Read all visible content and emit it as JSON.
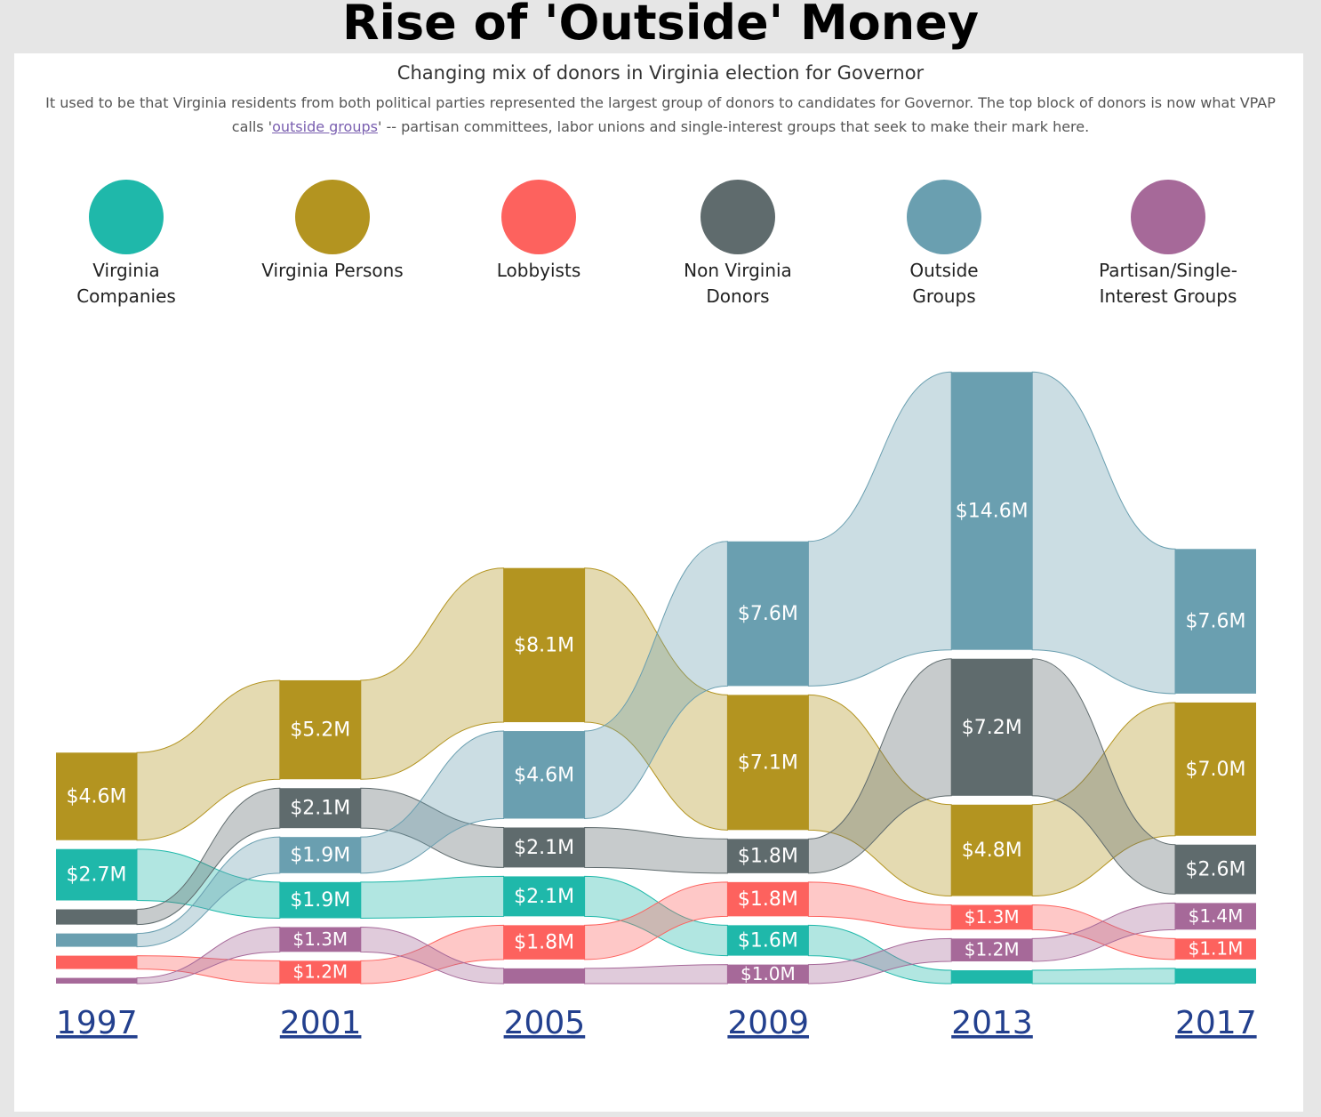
{
  "chart_data": {
    "type": "ribbon",
    "title": "Rise of 'Outside' Money",
    "subtitle": "Changing mix of donors in Virginia election for Governor",
    "description": {
      "before": "It used to be that Virginia residents from both political parties represented the largest group of donors to candidates for Governor.  The top block of donors is now what VPAP calls '",
      "link": "outside groups",
      "after": "' -- partisan committees, labor unions and single-interest groups that seek to make their mark here."
    },
    "categories": [
      "1997",
      "2001",
      "2005",
      "2009",
      "2013",
      "2017"
    ],
    "series": [
      {
        "name": "Virginia Companies",
        "color": "#1fb8aa",
        "values": [
          2.7,
          1.9,
          2.1,
          1.6,
          0.7,
          0.8
        ],
        "value_labels": [
          "$2.7M",
          "$1.9M",
          "$2.1M",
          "$1.6M",
          null,
          null
        ]
      },
      {
        "name": "Virginia Persons",
        "color": "#b39420",
        "values": [
          4.6,
          5.2,
          8.1,
          7.1,
          4.8,
          7.0
        ],
        "value_labels": [
          "$4.6M",
          "$5.2M",
          "$8.1M",
          "$7.1M",
          "$4.8M",
          "$7.0M"
        ]
      },
      {
        "name": "Lobbyists",
        "color": "#fd625e",
        "values": [
          0.7,
          1.2,
          1.8,
          1.8,
          1.3,
          1.1
        ],
        "value_labels": [
          null,
          "$1.2M",
          "$1.8M",
          "$1.8M",
          "$1.3M",
          "$1.1M"
        ]
      },
      {
        "name": "Non Virginia Donors",
        "color": "#5f6b6d",
        "values": [
          0.8,
          2.1,
          2.1,
          1.8,
          7.2,
          2.6
        ],
        "value_labels": [
          null,
          "$2.1M",
          "$2.1M",
          "$1.8M",
          "$7.2M",
          "$2.6M"
        ]
      },
      {
        "name": "Outside Groups",
        "color": "#6a9fb0",
        "values": [
          0.7,
          1.9,
          4.6,
          7.6,
          14.6,
          7.6
        ],
        "value_labels": [
          null,
          "$1.9M",
          "$4.6M",
          "$7.6M",
          "$14.6M",
          "$7.6M"
        ]
      },
      {
        "name": "Partisan/Single-Interest Groups",
        "color": "#a66999",
        "values": [
          0.3,
          1.3,
          0.8,
          1.0,
          1.2,
          1.4
        ],
        "value_labels": [
          null,
          "$1.3M",
          null,
          "$1.0M",
          "$1.2M",
          "$1.4M"
        ]
      }
    ]
  }
}
